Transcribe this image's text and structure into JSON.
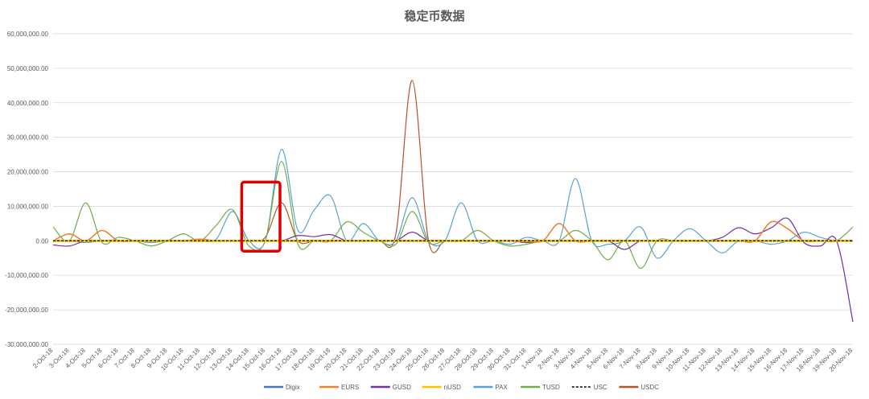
{
  "chart_data": {
    "type": "line",
    "title": "稳定币数据",
    "xlabel": "",
    "ylabel": "",
    "ylim": [
      -30000000,
      60000000
    ],
    "yticks": [
      60000000,
      50000000,
      40000000,
      30000000,
      20000000,
      10000000,
      0,
      -10000000,
      -20000000,
      -30000000
    ],
    "ytick_labels": [
      "60,000,000.00",
      "50,000,000.00",
      "40,000,000.00",
      "30,000,000.00",
      "20,000,000.00",
      "10,000,000.00",
      "0.00",
      "-10,000,000.00",
      "-20,000,000.00",
      "-30,000,000.00"
    ],
    "grid": true,
    "legend_position": "bottom",
    "categories": [
      "2-Oct-18",
      "3-Oct-18",
      "4-Oct-18",
      "5-Oct-18",
      "6-Oct-18",
      "7-Oct-18",
      "8-Oct-18",
      "9-Oct-18",
      "10-Oct-18",
      "11-Oct-18",
      "12-Oct-18",
      "13-Oct-18",
      "14-Oct-18",
      "15-Oct-18",
      "16-Oct-18",
      "17-Oct-18",
      "18-Oct-18",
      "19-Oct-18",
      "20-Oct-18",
      "21-Oct-18",
      "22-Oct-18",
      "23-Oct-18",
      "24-Oct-18",
      "25-Oct-18",
      "26-Oct-18",
      "27-Oct-18",
      "28-Oct-18",
      "29-Oct-18",
      "30-Oct-18",
      "31-Oct-18",
      "1-Nov-18",
      "2-Nov-18",
      "3-Nov-18",
      "4-Nov-18",
      "5-Nov-18",
      "6-Nov-18",
      "7-Nov-18",
      "8-Nov-18",
      "9-Nov-18",
      "10-Nov-18",
      "11-Nov-18",
      "12-Nov-18",
      "13-Nov-18",
      "14-Nov-18",
      "15-Nov-18",
      "16-Nov-18",
      "17-Nov-18",
      "18-Nov-18",
      "19-Nov-18",
      "20-Nov-18"
    ],
    "series": [
      {
        "name": "Digix",
        "color": "#4472c4",
        "dashed": false,
        "width": 2.5,
        "values": [
          0,
          0,
          0,
          0,
          0,
          0,
          0,
          0,
          0,
          0,
          0,
          0,
          0,
          0,
          0,
          0,
          0,
          0,
          0,
          0,
          0,
          0,
          0,
          0,
          0,
          0,
          0,
          0,
          0,
          0,
          0,
          0,
          0,
          0,
          0,
          0,
          0,
          0,
          0,
          0,
          0,
          0,
          0,
          0,
          0,
          0,
          0,
          0,
          0,
          0
        ]
      },
      {
        "name": "EURS",
        "color": "#ed7d31",
        "dashed": false,
        "width": 1.5,
        "values": [
          0,
          2000000,
          0,
          3000000,
          0,
          0,
          0,
          0,
          0,
          500000,
          0,
          0,
          0,
          0,
          0,
          0,
          0,
          0,
          0,
          0,
          0,
          0,
          0,
          0,
          0,
          0,
          0,
          0,
          0,
          0,
          0,
          5000000,
          0,
          0,
          0,
          0,
          0,
          0,
          0,
          0,
          0,
          0,
          0,
          0,
          5500000,
          3500000,
          0,
          0,
          0,
          0
        ]
      },
      {
        "name": "GUSD",
        "color": "#7030a0",
        "dashed": false,
        "width": 1.2,
        "values": [
          -1200000,
          -1500000,
          0,
          0,
          0,
          0,
          0,
          0,
          0,
          0,
          0,
          0,
          0,
          0,
          0,
          1500000,
          1200000,
          1800000,
          0,
          0,
          0,
          0,
          2500000,
          0,
          0,
          0,
          0,
          0,
          0,
          -500000,
          0,
          0,
          0,
          0,
          0,
          -2500000,
          0,
          0,
          0,
          0,
          0,
          1000000,
          3800000,
          2000000,
          3800000,
          6500000,
          -500000,
          -1500000,
          0,
          -23500000
        ]
      },
      {
        "name": "nUSD",
        "color": "#ffc000",
        "dashed": false,
        "width": 2.5,
        "values": [
          0,
          0,
          0,
          0,
          0,
          0,
          0,
          0,
          0,
          0,
          0,
          0,
          0,
          0,
          0,
          0,
          0,
          0,
          0,
          0,
          0,
          0,
          0,
          0,
          0,
          0,
          0,
          0,
          0,
          0,
          0,
          0,
          0,
          0,
          0,
          0,
          0,
          0,
          0,
          0,
          0,
          0,
          0,
          0,
          0,
          0,
          0,
          0,
          0,
          0
        ]
      },
      {
        "name": "PAX",
        "color": "#5ba3d0",
        "dashed": false,
        "width": 1.2,
        "values": [
          0,
          0,
          -500000,
          0,
          0,
          0,
          -500000,
          0,
          0,
          0,
          500000,
          8500000,
          0,
          0,
          26500000,
          3000000,
          9000000,
          13000000,
          0,
          5000000,
          0,
          0,
          12500000,
          0,
          0,
          11000000,
          0,
          0,
          -1000000,
          1000000,
          0,
          0,
          18000000,
          0,
          -1000000,
          0,
          4000000,
          -5000000,
          0,
          3500000,
          0,
          -3500000,
          0,
          0,
          -1000000,
          0,
          2500000,
          1000000,
          0,
          0
        ]
      },
      {
        "name": "TUSD",
        "color": "#70ad47",
        "dashed": false,
        "width": 1.2,
        "values": [
          4000000,
          0,
          11000000,
          -500000,
          1000000,
          0,
          -1500000,
          0,
          2000000,
          0,
          4500000,
          9000000,
          -1500000,
          0,
          23000000,
          -1000000,
          0,
          0,
          5500000,
          2500000,
          0,
          -1000000,
          8500000,
          -500000,
          0,
          0,
          3000000,
          0,
          -1500000,
          -1000000,
          0,
          0,
          3000000,
          0,
          -5500000,
          0,
          -8000000,
          0,
          0,
          0,
          0,
          0,
          0,
          0,
          0,
          0,
          0,
          0,
          0,
          4000000
        ]
      },
      {
        "name": "USC",
        "color": "#000000",
        "dashed": true,
        "width": 1.2,
        "values": [
          0,
          0,
          0,
          0,
          0,
          0,
          0,
          0,
          0,
          0,
          0,
          0,
          0,
          0,
          0,
          0,
          0,
          0,
          0,
          0,
          0,
          0,
          0,
          0,
          0,
          0,
          0,
          0,
          0,
          0,
          0,
          0,
          0,
          0,
          0,
          0,
          0,
          0,
          0,
          0,
          0,
          0,
          0,
          0,
          0,
          0,
          0,
          0,
          0,
          0
        ]
      },
      {
        "name": "USDC",
        "color": "#b5532a",
        "dashed": false,
        "width": 1.2,
        "values": [
          0,
          0,
          0,
          0,
          0,
          0,
          0,
          0,
          0,
          0,
          0,
          0,
          0,
          1000000,
          11000000,
          0,
          0,
          0,
          0,
          0,
          0,
          2000000,
          46500000,
          0,
          0,
          0,
          0,
          0,
          0,
          0,
          0,
          0,
          0,
          0,
          0,
          0,
          0,
          0,
          0,
          0,
          0,
          0,
          0,
          0,
          0,
          0,
          0,
          0,
          0,
          0
        ]
      }
    ],
    "annotation": {
      "type": "highlight-box",
      "color": "#e00000",
      "from_category": "14-Oct-18",
      "to_category": "16-Oct-18",
      "y_range": [
        -3000000,
        17000000
      ]
    }
  }
}
